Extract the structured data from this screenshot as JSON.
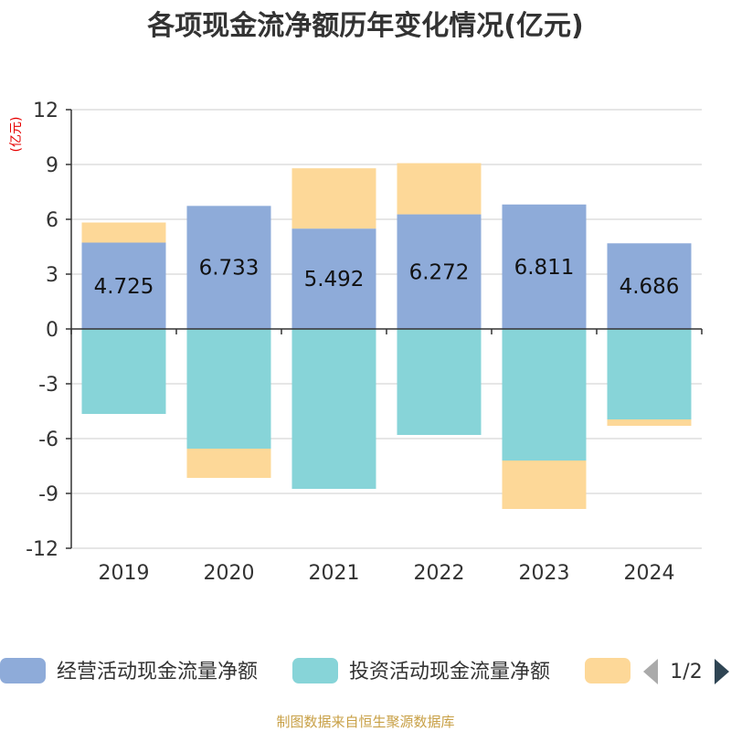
{
  "chart_data": {
    "type": "bar",
    "stacked": true,
    "title": "各项现金流净额历年变化情况(亿元)",
    "ylabel": "(亿元)",
    "categories": [
      "2019",
      "2020",
      "2021",
      "2022",
      "2023",
      "2024"
    ],
    "ylim": [
      -12,
      12
    ],
    "yticks": [
      12,
      9,
      6,
      3,
      0,
      -3,
      -6,
      -9,
      -12
    ],
    "series": [
      {
        "name": "经营活动现金流量净额",
        "color": "#8eabd9",
        "values": [
          4.725,
          6.733,
          5.492,
          6.272,
          6.811,
          4.686
        ],
        "show_labels": true
      },
      {
        "name": "投资活动现金流量净额",
        "color": "#87d4d8",
        "values": [
          -4.65,
          -6.55,
          -8.75,
          -5.8,
          -7.2,
          -4.95
        ],
        "show_labels": false
      },
      {
        "name": "",
        "color": "#fdd898",
        "values": [
          1.1,
          -1.6,
          3.3,
          2.8,
          -2.65,
          -0.35
        ],
        "show_labels": false
      }
    ],
    "legend": {
      "items": [
        "经营活动现金流量净额",
        "投资活动现金流量净额",
        ""
      ],
      "page": "1/2"
    },
    "source": "制图数据来自恒生聚源数据库"
  }
}
